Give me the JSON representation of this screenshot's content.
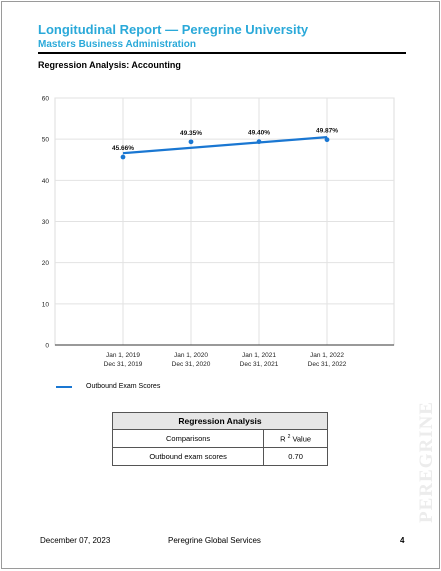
{
  "header": {
    "title": "Longitudinal Report — Peregrine University",
    "subtitle": "Masters Business Administration"
  },
  "section": {
    "title": "Regression Analysis: Accounting"
  },
  "chart_data": {
    "type": "line",
    "categories": [
      "Jan 1, 2019\nDec 31, 2019",
      "Jan 1, 2020\nDec 31, 2020",
      "Jan 1, 2021\nDec 31, 2021",
      "Jan 1, 2022\nDec 31, 2022"
    ],
    "series": [
      {
        "name": "Outbound Exam Scores",
        "values": [
          45.66,
          49.35,
          49.4,
          49.87
        ],
        "labels": [
          "45.66%",
          "49.35%",
          "49.40%",
          "49.87%"
        ],
        "color": "#1a77d2"
      }
    ],
    "regression_line": [
      46.6,
      47.9,
      49.2,
      50.5
    ],
    "ylim": [
      0,
      60
    ],
    "yticks": [
      0,
      10,
      20,
      30,
      40,
      50,
      60
    ],
    "grid": true,
    "legend": "bottom-left"
  },
  "table": {
    "title": "Regression Analysis",
    "headers": {
      "comparisons": "Comparisons",
      "r_prefix": "R ",
      "r_sup": "2",
      "r_suffix": " Value"
    },
    "rows": [
      {
        "comparison": "Outbound exam scores",
        "value": "0.70"
      }
    ]
  },
  "footer": {
    "date": "December 07, 2023",
    "company": "Peregrine Global Services",
    "page": "4"
  },
  "watermark": "PEREGRINE"
}
